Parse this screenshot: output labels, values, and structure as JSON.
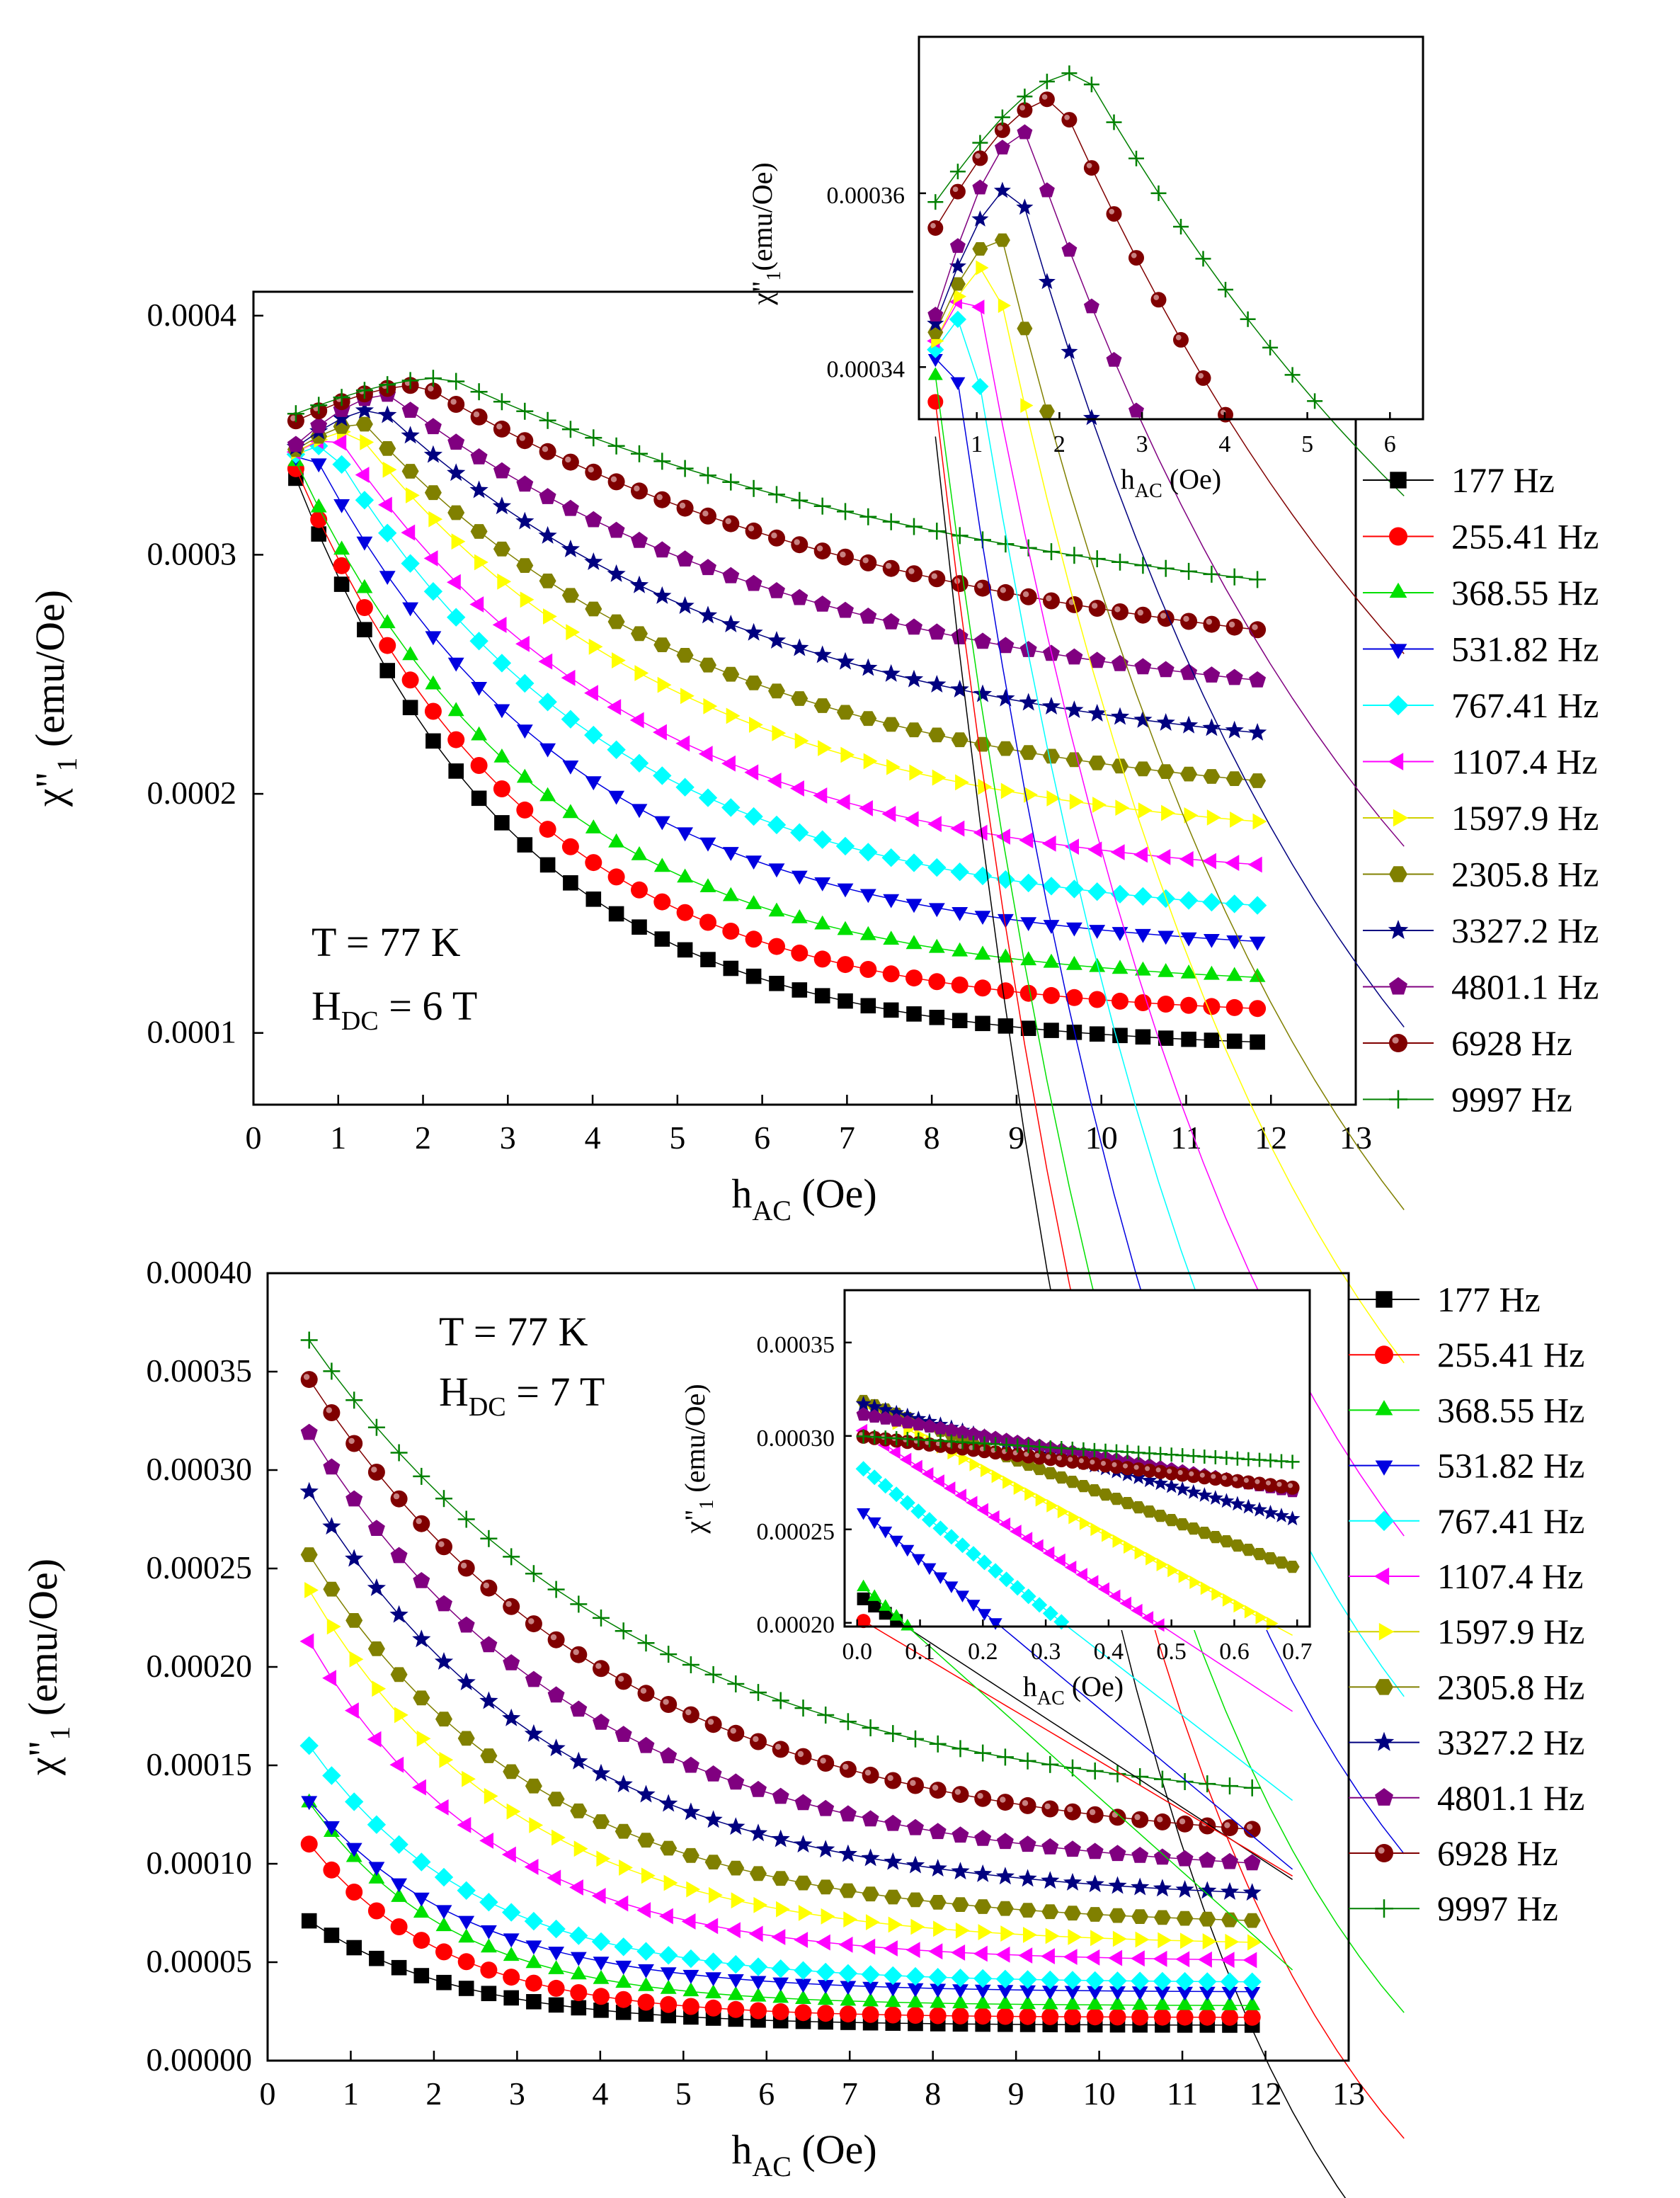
{
  "series_styles": [
    {
      "name": "177 Hz",
      "color": "#000000",
      "marker": "square"
    },
    {
      "name": "255.41 Hz",
      "color": "#ff0000",
      "marker": "circle"
    },
    {
      "name": "368.55 Hz",
      "color": "#00e000",
      "marker": "triangle-up"
    },
    {
      "name": "531.82 Hz",
      "color": "#0000e0",
      "marker": "triangle-down"
    },
    {
      "name": "767.41 Hz",
      "color": "#00ffff",
      "marker": "diamond"
    },
    {
      "name": "1107.4 Hz",
      "color": "#ff00ff",
      "marker": "triangle-left"
    },
    {
      "name": "1597.9 Hz",
      "color": "#ffff00",
      "marker": "triangle-right"
    },
    {
      "name": "2305.8 Hz",
      "color": "#808000",
      "marker": "hexagon"
    },
    {
      "name": "3327.2 Hz",
      "color": "#000080",
      "marker": "star"
    },
    {
      "name": "4801.1 Hz",
      "color": "#800080",
      "marker": "pentagon"
    },
    {
      "name": "6928 Hz",
      "color": "#800000",
      "marker": "sphere"
    },
    {
      "name": "9997 Hz",
      "color": "#008000",
      "marker": "plus"
    }
  ],
  "chart_data": [
    {
      "id": "top-main",
      "type": "scatter",
      "xlabel_main": "h",
      "xlabel_sub": "AC",
      "xlabel_unit": " (Oe)",
      "ylabel_main": "χ\"",
      "ylabel_sub": "1",
      "ylabel_unit": " (emu/Oe)",
      "xlim": [
        0,
        13
      ],
      "ylim": [
        7e-05,
        0.00041
      ],
      "xticks": [
        0,
        1,
        2,
        3,
        4,
        5,
        6,
        7,
        8,
        9,
        10,
        11,
        12,
        13
      ],
      "xtick_labels": [
        "0",
        "1",
        "2",
        "3",
        "4",
        "5",
        "6",
        "7",
        "8",
        "9",
        "10",
        "11",
        "12",
        "13"
      ],
      "yticks": [
        0.0001,
        0.0002,
        0.0003,
        0.0004
      ],
      "ytick_labels": [
        "0.0001",
        "0.0002",
        "0.0003",
        "0.0004"
      ],
      "annotation_line1": "T = 77 K",
      "annotation_line2_main": "H",
      "annotation_line2_sub": "DC",
      "annotation_line2_rest": " = 6 T",
      "x_start": 0.5,
      "x_step": 0.27,
      "x_count": 43,
      "curves": [
        {
          "y0": 0.000332,
          "ypeak": 0.000332,
          "xpeak": 0.5,
          "yend": 9.6e-05,
          "k": 0.38
        },
        {
          "y0": 0.000336,
          "ypeak": 0.000336,
          "xpeak": 0.5,
          "yend": 0.00011,
          "k": 0.36
        },
        {
          "y0": 0.000339,
          "ypeak": 0.000339,
          "xpeak": 0.5,
          "yend": 0.000123,
          "k": 0.34
        },
        {
          "y0": 0.000341,
          "ypeak": 0.000343,
          "xpeak": 0.7,
          "yend": 0.000138,
          "k": 0.32
        },
        {
          "y0": 0.000342,
          "ypeak": 0.000346,
          "xpeak": 0.9,
          "yend": 0.000153,
          "k": 0.3
        },
        {
          "y0": 0.000343,
          "ypeak": 0.000349,
          "xpeak": 1.0,
          "yend": 0.00017,
          "k": 0.28
        },
        {
          "y0": 0.000343,
          "ypeak": 0.000352,
          "xpeak": 1.2,
          "yend": 0.000188,
          "k": 0.26
        },
        {
          "y0": 0.000344,
          "ypeak": 0.000355,
          "xpeak": 1.3,
          "yend": 0.000205,
          "k": 0.24
        },
        {
          "y0": 0.000345,
          "ypeak": 0.000361,
          "xpeak": 1.5,
          "yend": 0.000225,
          "k": 0.22
        },
        {
          "y0": 0.000346,
          "ypeak": 0.000367,
          "xpeak": 1.6,
          "yend": 0.000247,
          "k": 0.2
        },
        {
          "y0": 0.000356,
          "ypeak": 0.000371,
          "xpeak": 2.0,
          "yend": 0.000268,
          "k": 0.17
        },
        {
          "y0": 0.000359,
          "ypeak": 0.000374,
          "xpeak": 2.3,
          "yend": 0.000289,
          "k": 0.15
        }
      ]
    },
    {
      "id": "top-inset",
      "type": "scatter",
      "xlabel_main": "h",
      "xlabel_sub": "AC",
      "xlabel_unit": " (Oe)",
      "ylabel_main": "χ\"",
      "ylabel_sub": "1",
      "ylabel_unit": "(emu/Oe)",
      "xlim": [
        0.3,
        6.4
      ],
      "ylim": [
        0.000334,
        0.000378
      ],
      "xticks": [
        1,
        2,
        3,
        4,
        5,
        6
      ],
      "xtick_labels": [
        "1",
        "2",
        "3",
        "4",
        "5",
        "6"
      ],
      "yticks": [
        0.00034,
        0.00036
      ],
      "ytick_labels": [
        "0.00034",
        "0.00036"
      ],
      "x_start": 0.5,
      "x_step": 0.27,
      "x_count": 22
    },
    {
      "id": "bottom-main",
      "type": "scatter",
      "xlabel_main": "h",
      "xlabel_sub": "AC",
      "xlabel_unit": " (Oe)",
      "ylabel_main": "χ\"",
      "ylabel_sub": "1",
      "ylabel_unit": " (emu/Oe)",
      "xlim": [
        0,
        13
      ],
      "ylim": [
        0,
        0.0004
      ],
      "xticks": [
        0,
        1,
        2,
        3,
        4,
        5,
        6,
        7,
        8,
        9,
        10,
        11,
        12,
        13
      ],
      "xtick_labels": [
        "0",
        "1",
        "2",
        "3",
        "4",
        "5",
        "6",
        "7",
        "8",
        "9",
        "10",
        "11",
        "12",
        "13"
      ],
      "yticks": [
        0,
        5e-05,
        0.0001,
        0.00015,
        0.0002,
        0.00025,
        0.0003,
        0.00035,
        0.0004
      ],
      "ytick_labels": [
        "0.00000",
        "0.00005",
        "0.00010",
        "0.00015",
        "0.00020",
        "0.00025",
        "0.00030",
        "0.00035",
        "0.00040"
      ],
      "annotation_line1": "T = 77 K",
      "annotation_line2_main": "H",
      "annotation_line2_sub": "DC",
      "annotation_line2_rest": " = 7 T",
      "x_start": 0.5,
      "x_step": 0.27,
      "x_count": 43,
      "curves": [
        {
          "y0": 7.1e-05,
          "yend": 1.8e-05,
          "k": 0.55
        },
        {
          "y0": 0.00011,
          "yend": 2.2e-05,
          "k": 0.6
        },
        {
          "y0": 0.000131,
          "yend": 2.8e-05,
          "k": 0.58
        },
        {
          "y0": 0.000132,
          "yend": 3.5e-05,
          "k": 0.52
        },
        {
          "y0": 0.00016,
          "yend": 4e-05,
          "k": 0.5
        },
        {
          "y0": 0.000213,
          "yend": 5.1e-05,
          "k": 0.45
        },
        {
          "y0": 0.000239,
          "yend": 6e-05,
          "k": 0.4
        },
        {
          "y0": 0.000257,
          "yend": 7.1e-05,
          "k": 0.36
        },
        {
          "y0": 0.000289,
          "yend": 8.5e-05,
          "k": 0.33
        },
        {
          "y0": 0.000319,
          "yend": 0.0001,
          "k": 0.3
        },
        {
          "y0": 0.000346,
          "yend": 0.000117,
          "k": 0.27
        },
        {
          "y0": 0.000366,
          "yend": 0.000138,
          "k": 0.25
        }
      ]
    },
    {
      "id": "bottom-inset",
      "type": "scatter",
      "xlabel_main": "h",
      "xlabel_sub": "AC",
      "xlabel_unit": " (Oe)",
      "ylabel_main": "χ\"",
      "ylabel_sub": "1",
      "ylabel_unit": " (emu/Oe)",
      "xlim": [
        -0.02,
        0.72
      ],
      "ylim": [
        0.000198,
        0.000378
      ],
      "xticks": [
        0.0,
        0.1,
        0.2,
        0.3,
        0.4,
        0.5,
        0.6,
        0.7
      ],
      "xtick_labels": [
        "0.0",
        "0.1",
        "0.2",
        "0.3",
        "0.4",
        "0.5",
        "0.6",
        "0.7"
      ],
      "yticks": [
        0.0002,
        0.00025,
        0.0003,
        0.00035
      ],
      "ytick_labels": [
        "0.00020",
        "0.00025",
        "0.00030",
        "0.00035"
      ],
      "x_start": 0.01,
      "x_step": 0.0175,
      "x_count": 40,
      "curves": [
        {
          "ystart": 0.000215,
          "slope": -0.00022
        },
        {
          "ystart": 0.000203,
          "slope": -0.0002
        },
        {
          "ystart": 0.000222,
          "slope": -0.0003
        },
        {
          "ystart": 0.000262,
          "slope": -0.00028
        },
        {
          "ystart": 0.000285,
          "slope": -0.00026
        },
        {
          "ystart": 0.000305,
          "slope": -0.00022
        },
        {
          "ystart": 0.000318,
          "slope": -0.00018
        },
        {
          "ystart": 0.00032,
          "slope": -0.00013
        },
        {
          "ystart": 0.000318,
          "slope": -9e-05
        },
        {
          "ystart": 0.000312,
          "slope": -6e-05
        },
        {
          "ystart": 0.0003,
          "slope": -4e-05
        },
        {
          "ystart": 0.0003,
          "slope": -2e-05
        }
      ]
    }
  ]
}
